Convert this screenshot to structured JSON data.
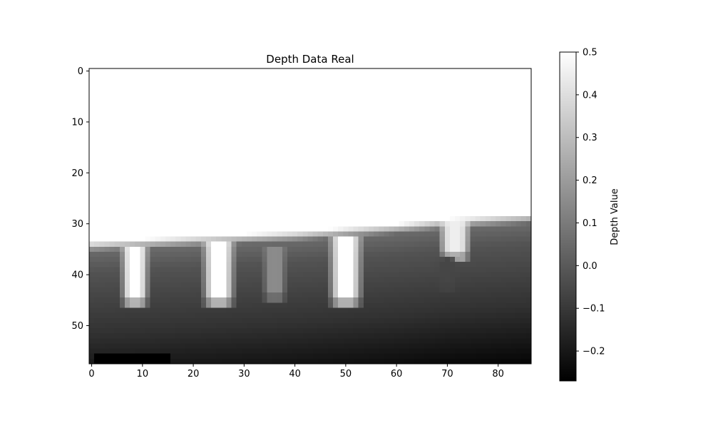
{
  "chart_data": {
    "type": "heatmap",
    "title": "Depth Data Real",
    "xlabel": "",
    "ylabel": "",
    "colorbar_label": "Depth Value",
    "colormap": "gray",
    "xlim": [
      -0.5,
      86.5
    ],
    "ylim": [
      57.5,
      -0.5
    ],
    "vmin": -0.27,
    "vmax": 0.5,
    "x_ticks": [
      0,
      10,
      20,
      30,
      40,
      50,
      60,
      70,
      80
    ],
    "y_ticks": [
      0,
      10,
      20,
      30,
      40,
      50
    ],
    "colorbar_ticks": [
      {
        "value": 0.5,
        "label": "0.5"
      },
      {
        "value": 0.4,
        "label": "0.4"
      },
      {
        "value": 0.3,
        "label": "0.3"
      },
      {
        "value": 0.2,
        "label": "0.2"
      },
      {
        "value": 0.1,
        "label": "0.1"
      },
      {
        "value": 0.0,
        "label": "0.0"
      },
      {
        "value": -0.1,
        "label": "−0.1"
      },
      {
        "value": -0.2,
        "label": "−0.2"
      }
    ],
    "grid_shape": {
      "rows": 58,
      "cols": 87
    },
    "surface_row_by_col": [
      [
        0,
        33.5
      ],
      [
        20,
        32.5
      ],
      [
        40,
        31.5
      ],
      [
        60,
        30.0
      ],
      [
        70,
        29.0
      ],
      [
        86,
        28.0
      ]
    ],
    "depth_profile": [
      [
        0,
        0.5
      ],
      [
        2,
        0.05
      ],
      [
        6,
        -0.02
      ],
      [
        12,
        -0.07
      ],
      [
        18,
        -0.12
      ],
      [
        24,
        -0.19
      ],
      [
        30,
        -0.26
      ]
    ],
    "bright_plumes": [
      {
        "center_col": 8.5,
        "half_width": 2.0,
        "top_row": 35,
        "bottom_row": 46,
        "peak": 0.5
      },
      {
        "center_col": 25.0,
        "half_width": 2.5,
        "top_row": 34,
        "bottom_row": 46,
        "peak": 0.5
      },
      {
        "center_col": 36.0,
        "half_width": 1.6,
        "top_row": 35,
        "bottom_row": 45,
        "peak": 0.15
      },
      {
        "center_col": 50.0,
        "half_width": 2.6,
        "top_row": 33,
        "bottom_row": 46,
        "peak": 0.5
      },
      {
        "center_col": 71.5,
        "half_width": 2.4,
        "top_row": 30,
        "bottom_row": 37,
        "peak": 0.45
      },
      {
        "center_col": 70.0,
        "half_width": 1.2,
        "top_row": 37,
        "bottom_row": 43,
        "peak": -0.06
      }
    ],
    "dark_patch": {
      "col_start": 1,
      "col_end": 15,
      "row_start": 56,
      "row_end": 57,
      "value": -0.27
    }
  }
}
